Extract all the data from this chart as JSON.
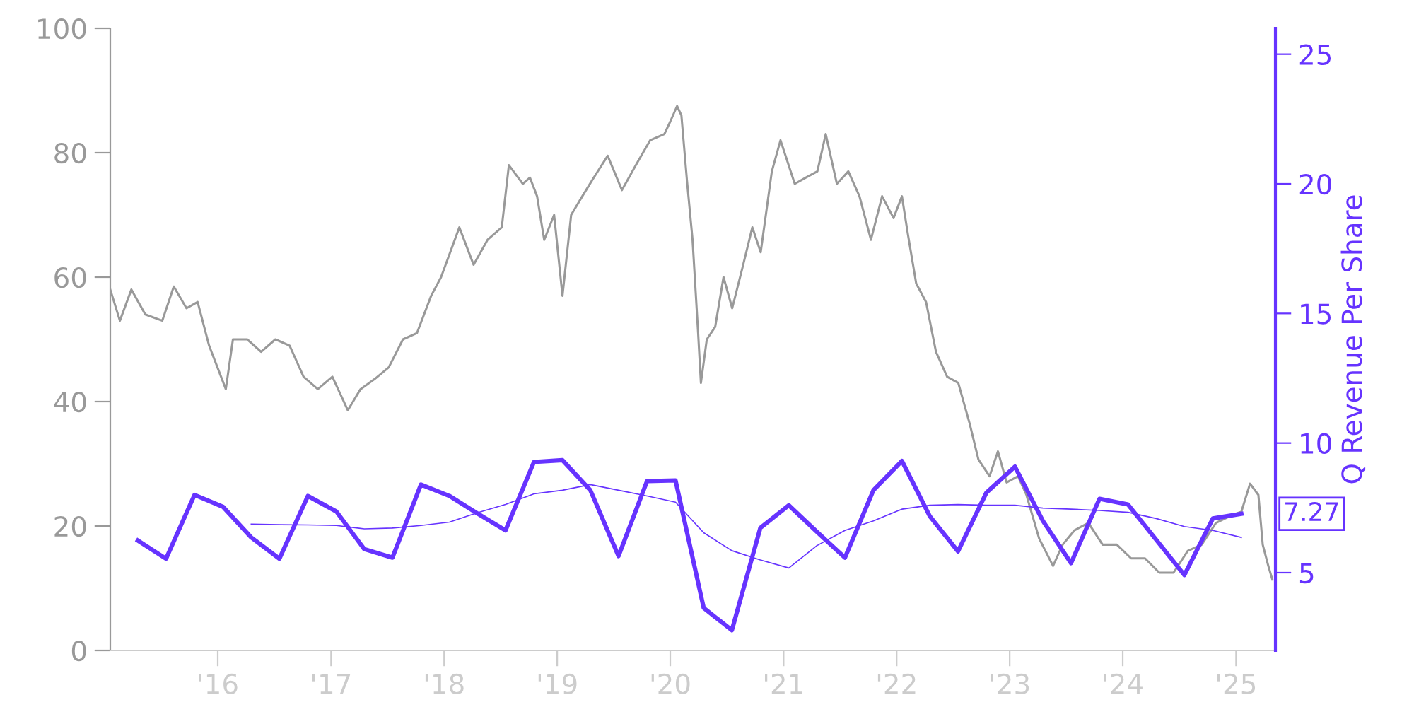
{
  "chart_data": {
    "type": "line",
    "y2label": "Q Revenue Per Share",
    "xlim": [
      "2015-01-19",
      "2025-05-08"
    ],
    "xticks": [
      {
        "value": "2016-01-01",
        "label": "'16"
      },
      {
        "value": "2017-01-01",
        "label": "'17"
      },
      {
        "value": "2018-01-01",
        "label": "'18"
      },
      {
        "value": "2019-01-01",
        "label": "'19"
      },
      {
        "value": "2020-01-01",
        "label": "'20"
      },
      {
        "value": "2021-01-01",
        "label": "'21"
      },
      {
        "value": "2022-01-01",
        "label": "'22"
      },
      {
        "value": "2023-01-01",
        "label": "'23"
      },
      {
        "value": "2024-01-01",
        "label": "'24"
      },
      {
        "value": "2025-01-01",
        "label": "'25"
      }
    ],
    "ylim": [
      0,
      100
    ],
    "yticks": [
      0,
      20,
      40,
      60,
      80,
      100
    ],
    "y2lim": [
      2,
      26
    ],
    "y2ticks": [
      5,
      10,
      15,
      20,
      25
    ],
    "grid": false,
    "legend": false,
    "marker": "none",
    "line_style": "solid",
    "series": [
      {
        "color": "#999999",
        "x": [
          "2015-01-19",
          "2015-02-19",
          "2015-03-28",
          "2015-05-12",
          "2015-07-06",
          "2015-08-12",
          "2015-09-22",
          "2015-10-28",
          "2015-12-04",
          "2016-01-27",
          "2016-02-19",
          "2016-04-05",
          "2016-05-20",
          "2016-07-05",
          "2016-08-20",
          "2016-10-04",
          "2016-11-19",
          "2017-01-05",
          "2017-02-24",
          "2017-04-06",
          "2017-05-21",
          "2017-07-06",
          "2017-08-21",
          "2017-10-05",
          "2017-11-20",
          "2017-12-22",
          "2018-02-19",
          "2018-04-06",
          "2018-05-21",
          "2018-07-06",
          "2018-07-29",
          "2018-09-12",
          "2018-10-05",
          "2018-10-28",
          "2018-11-20",
          "2018-12-22",
          "2019-01-18",
          "2019-02-15",
          "2019-03-23",
          "2019-04-29",
          "2019-06-13",
          "2019-07-29",
          "2019-09-12",
          "2019-10-28",
          "2019-12-13",
          "2020-01-01",
          "2020-01-23",
          "2020-02-06",
          "2020-02-24",
          "2020-03-13",
          "2020-03-31",
          "2020-04-09",
          "2020-04-28",
          "2020-05-25",
          "2020-06-21",
          "2020-07-19",
          "2020-08-21",
          "2020-09-22",
          "2020-10-19",
          "2020-11-24",
          "2020-12-22",
          "2021-02-06",
          "2021-03-14",
          "2021-04-20",
          "2021-05-17",
          "2021-06-22",
          "2021-07-29",
          "2021-09-03",
          "2021-10-10",
          "2021-11-15",
          "2021-12-22",
          "2022-01-18",
          "2022-02-06",
          "2022-03-05",
          "2022-04-06",
          "2022-05-08",
          "2022-06-13",
          "2022-07-19",
          "2022-08-25",
          "2022-09-22",
          "2022-10-28",
          "2022-11-24",
          "2022-12-22",
          "2023-01-28",
          "2023-02-24",
          "2023-04-06",
          "2023-05-21",
          "2023-06-21",
          "2023-07-29",
          "2023-09-12",
          "2023-10-28",
          "2023-12-13",
          "2024-01-28",
          "2024-03-13",
          "2024-04-28",
          "2024-06-13",
          "2024-07-29",
          "2024-09-12",
          "2024-10-28",
          "2024-12-13",
          "2025-01-18",
          "2025-02-15",
          "2025-03-14",
          "2025-03-28",
          "2025-04-15",
          "2025-04-28"
        ],
        "values": [
          58,
          53,
          58,
          54,
          53,
          58.5,
          55,
          56,
          49,
          42,
          50,
          50,
          48,
          50,
          49,
          44,
          42,
          44,
          38.6,
          42,
          43.6,
          45.5,
          50,
          51,
          57,
          60,
          68,
          62,
          66,
          68,
          78,
          75,
          76,
          73,
          66,
          70,
          57,
          70,
          73,
          76,
          79.5,
          74,
          78,
          82,
          83,
          85,
          87.5,
          86,
          75.5,
          66,
          51,
          43,
          50,
          52,
          60,
          55,
          61.5,
          68,
          64,
          77,
          82,
          75,
          76,
          77,
          83,
          75,
          77,
          73,
          66,
          73,
          69.5,
          73,
          67,
          59,
          56,
          48,
          44,
          43,
          36.4,
          30.7,
          28,
          32,
          27,
          28,
          25,
          18,
          13.6,
          17,
          19.3,
          20.5,
          17,
          17,
          14.8,
          14.8,
          12.5,
          12.5,
          16,
          17,
          20.5,
          21.6,
          22.3,
          26.8,
          25,
          17,
          13.6,
          11.4
        ]
      },
      {
        "color": "#6633ff",
        "axis": "y2",
        "x": [
          "2015-04-18",
          "2015-07-18",
          "2015-10-18",
          "2016-01-18",
          "2016-04-18",
          "2016-07-18",
          "2016-10-18",
          "2017-01-18",
          "2017-04-18",
          "2017-07-18",
          "2017-10-18",
          "2018-01-18",
          "2018-04-18",
          "2018-07-18",
          "2018-10-18",
          "2019-01-18",
          "2019-04-18",
          "2019-07-18",
          "2019-10-18",
          "2020-01-18",
          "2020-04-18",
          "2020-07-18",
          "2020-10-18",
          "2021-01-18",
          "2021-04-18",
          "2021-07-18",
          "2021-10-18",
          "2022-01-18",
          "2022-04-18",
          "2022-07-18",
          "2022-10-18",
          "2023-01-18",
          "2023-04-18",
          "2023-07-18",
          "2023-10-18",
          "2024-01-18",
          "2024-04-18",
          "2024-07-18",
          "2024-10-18",
          "2025-01-18"
        ],
        "values": [
          6.24,
          5.54,
          8.0,
          7.54,
          6.36,
          5.54,
          7.96,
          7.36,
          5.91,
          5.58,
          8.4,
          7.96,
          7.29,
          6.63,
          9.27,
          9.34,
          8.18,
          5.64,
          8.53,
          8.56,
          3.64,
          2.78,
          6.73,
          7.6,
          6.58,
          5.58,
          8.18,
          9.31,
          7.18,
          5.82,
          8.09,
          9.09,
          7.0,
          5.37,
          7.85,
          7.63,
          6.27,
          4.91,
          7.09,
          7.27
        ],
        "value_labels": [
          null,
          null,
          null,
          null,
          null,
          null,
          null,
          null,
          null,
          null,
          null,
          null,
          null,
          null,
          null,
          null,
          null,
          null,
          null,
          null,
          null,
          null,
          null,
          null,
          null,
          null,
          null,
          null,
          null,
          null,
          null,
          null,
          null,
          null,
          null,
          null,
          null,
          null,
          null,
          "7.27"
        ]
      },
      {
        "color": "#6633ff",
        "axis": "y2",
        "x": [
          "2016-04-18",
          "2016-07-18",
          "2016-10-18",
          "2017-01-18",
          "2017-04-18",
          "2017-07-18",
          "2017-10-18",
          "2018-01-18",
          "2018-04-18",
          "2018-07-18",
          "2018-10-18",
          "2019-01-18",
          "2019-04-18",
          "2019-07-18",
          "2019-10-18",
          "2020-01-18",
          "2020-04-18",
          "2020-07-18",
          "2020-10-18",
          "2021-01-18",
          "2021-04-18",
          "2021-07-18",
          "2021-10-18",
          "2022-01-18",
          "2022-04-18",
          "2022-07-18",
          "2022-10-18",
          "2023-01-18",
          "2023-04-18",
          "2023-07-18",
          "2023-10-18",
          "2024-01-18",
          "2024-04-18",
          "2024-07-18",
          "2024-10-18",
          "2025-01-18"
        ],
        "values": [
          6.87,
          6.85,
          6.84,
          6.82,
          6.69,
          6.72,
          6.82,
          6.95,
          7.31,
          7.63,
          8.04,
          8.18,
          8.4,
          8.18,
          7.96,
          7.72,
          6.54,
          5.85,
          5.49,
          5.18,
          6.04,
          6.63,
          7.0,
          7.45,
          7.6,
          7.63,
          7.6,
          7.6,
          7.49,
          7.45,
          7.4,
          7.33,
          7.09,
          6.78,
          6.63,
          6.36
        ]
      }
    ]
  }
}
